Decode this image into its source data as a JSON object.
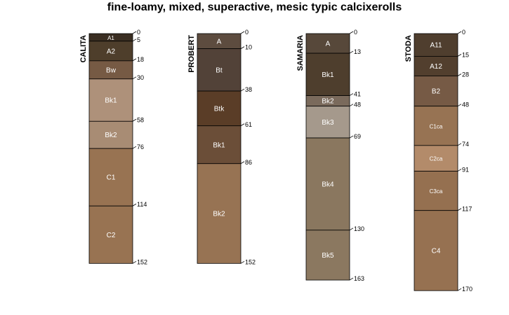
{
  "title": "fine-loamy, mixed, superactive, mesic typic calcixerolls",
  "chart_data": {
    "type": "soil-profile",
    "depth_units": "cm",
    "max_depth": 170,
    "profiles": [
      {
        "name": "CALITA",
        "horizons": [
          {
            "name": "A1",
            "top": 0,
            "bottom": 5,
            "color": "#3a2e22"
          },
          {
            "name": "A2",
            "top": 5,
            "bottom": 18,
            "color": "#4e3e2b"
          },
          {
            "name": "Bw",
            "top": 18,
            "bottom": 30,
            "color": "#765a44"
          },
          {
            "name": "Bk1",
            "top": 30,
            "bottom": 58,
            "color": "#ae917a"
          },
          {
            "name": "Bk2",
            "top": 58,
            "bottom": 76,
            "color": "#a88c74"
          },
          {
            "name": "C1",
            "top": 76,
            "bottom": 114,
            "color": "#987352"
          },
          {
            "name": "C2",
            "top": 114,
            "bottom": 152,
            "color": "#987352"
          }
        ]
      },
      {
        "name": "PROBERT",
        "horizons": [
          {
            "name": "A",
            "top": 0,
            "bottom": 10,
            "color": "#5d4c3f"
          },
          {
            "name": "Bt",
            "top": 10,
            "bottom": 38,
            "color": "#524238"
          },
          {
            "name": "Btk",
            "top": 38,
            "bottom": 61,
            "color": "#5a3d27"
          },
          {
            "name": "Bk1",
            "top": 61,
            "bottom": 86,
            "color": "#6b4e38"
          },
          {
            "name": "Bk2",
            "top": 86,
            "bottom": 152,
            "color": "#977353"
          }
        ]
      },
      {
        "name": "SAMARIA",
        "horizons": [
          {
            "name": "A",
            "top": 0,
            "bottom": 13,
            "color": "#57483a"
          },
          {
            "name": "Bk1",
            "top": 13,
            "bottom": 41,
            "color": "#4e3e2d"
          },
          {
            "name": "Bk2",
            "top": 41,
            "bottom": 48,
            "color": "#7a6a5c"
          },
          {
            "name": "Bk3",
            "top": 48,
            "bottom": 69,
            "color": "#a5998c"
          },
          {
            "name": "Bk4",
            "top": 69,
            "bottom": 130,
            "color": "#8a775f"
          },
          {
            "name": "Bk5",
            "top": 130,
            "bottom": 163,
            "color": "#8b7860"
          }
        ]
      },
      {
        "name": "STODA",
        "horizons": [
          {
            "name": "A11",
            "top": 0,
            "bottom": 15,
            "color": "#4f3e2e"
          },
          {
            "name": "A12",
            "top": 15,
            "bottom": 28,
            "color": "#523f2e"
          },
          {
            "name": "B2",
            "top": 28,
            "bottom": 48,
            "color": "#765a45"
          },
          {
            "name": "C1ca",
            "top": 48,
            "bottom": 74,
            "color": "#977353"
          },
          {
            "name": "C2ca",
            "top": 74,
            "bottom": 91,
            "color": "#b38b6a"
          },
          {
            "name": "C3ca",
            "top": 91,
            "bottom": 117,
            "color": "#957050"
          },
          {
            "name": "C4",
            "top": 117,
            "bottom": 170,
            "color": "#967151"
          }
        ]
      }
    ]
  }
}
